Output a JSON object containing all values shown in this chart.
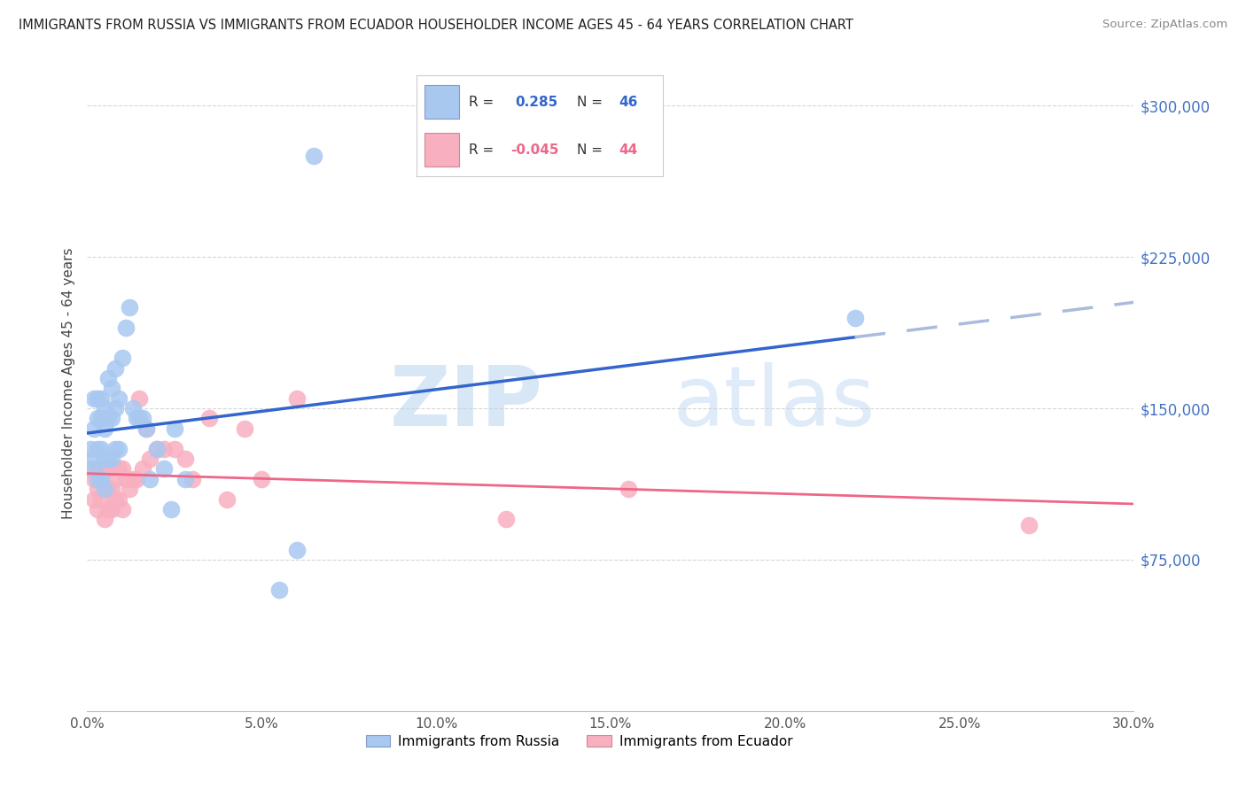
{
  "title": "IMMIGRANTS FROM RUSSIA VS IMMIGRANTS FROM ECUADOR HOUSEHOLDER INCOME AGES 45 - 64 YEARS CORRELATION CHART",
  "source": "Source: ZipAtlas.com",
  "ylabel": "Householder Income Ages 45 - 64 years",
  "y_tick_labels": [
    "$300,000",
    "$225,000",
    "$150,000",
    "$75,000"
  ],
  "y_tick_values": [
    300000,
    225000,
    150000,
    75000
  ],
  "y_lim": [
    0,
    325000
  ],
  "x_lim": [
    0.0,
    0.3
  ],
  "russia_label": "Immigrants from Russia",
  "ecuador_label": "Immigrants from Ecuador",
  "R_russia": "0.285",
  "N_russia": "46",
  "R_ecuador": "-0.045",
  "N_ecuador": "44",
  "russia_color": "#A8C8F0",
  "ecuador_color": "#F8B0C0",
  "russia_line_color": "#3366CC",
  "ecuador_line_color": "#EE6688",
  "russia_dash_color": "#AABBDD",
  "russia_x": [
    0.001,
    0.001,
    0.002,
    0.002,
    0.002,
    0.003,
    0.003,
    0.003,
    0.003,
    0.004,
    0.004,
    0.004,
    0.004,
    0.005,
    0.005,
    0.005,
    0.005,
    0.006,
    0.006,
    0.006,
    0.007,
    0.007,
    0.007,
    0.008,
    0.008,
    0.008,
    0.009,
    0.009,
    0.01,
    0.011,
    0.012,
    0.013,
    0.014,
    0.015,
    0.016,
    0.017,
    0.018,
    0.02,
    0.022,
    0.024,
    0.025,
    0.028,
    0.055,
    0.06,
    0.065,
    0.22
  ],
  "russia_y": [
    130000,
    125000,
    155000,
    140000,
    120000,
    155000,
    145000,
    130000,
    115000,
    155000,
    145000,
    130000,
    115000,
    150000,
    140000,
    125000,
    110000,
    165000,
    145000,
    125000,
    160000,
    145000,
    125000,
    170000,
    150000,
    130000,
    155000,
    130000,
    175000,
    190000,
    200000,
    150000,
    145000,
    145000,
    145000,
    140000,
    115000,
    130000,
    120000,
    100000,
    140000,
    115000,
    60000,
    80000,
    275000,
    195000
  ],
  "ecuador_x": [
    0.001,
    0.002,
    0.002,
    0.003,
    0.003,
    0.003,
    0.004,
    0.004,
    0.005,
    0.005,
    0.005,
    0.006,
    0.006,
    0.006,
    0.007,
    0.007,
    0.007,
    0.008,
    0.008,
    0.009,
    0.009,
    0.01,
    0.01,
    0.011,
    0.012,
    0.013,
    0.014,
    0.015,
    0.016,
    0.017,
    0.018,
    0.02,
    0.022,
    0.025,
    0.028,
    0.03,
    0.035,
    0.04,
    0.045,
    0.05,
    0.06,
    0.12,
    0.155,
    0.27
  ],
  "ecuador_y": [
    120000,
    115000,
    105000,
    120000,
    110000,
    100000,
    115000,
    105000,
    120000,
    110000,
    95000,
    120000,
    110000,
    100000,
    120000,
    110000,
    100000,
    115000,
    105000,
    120000,
    105000,
    120000,
    100000,
    115000,
    110000,
    115000,
    115000,
    155000,
    120000,
    140000,
    125000,
    130000,
    130000,
    130000,
    125000,
    115000,
    145000,
    105000,
    140000,
    115000,
    155000,
    95000,
    110000,
    92000
  ],
  "watermark_zip": "ZIP",
  "watermark_atlas": "atlas",
  "background_color": "#FFFFFF",
  "grid_color": "#CCCCCC"
}
